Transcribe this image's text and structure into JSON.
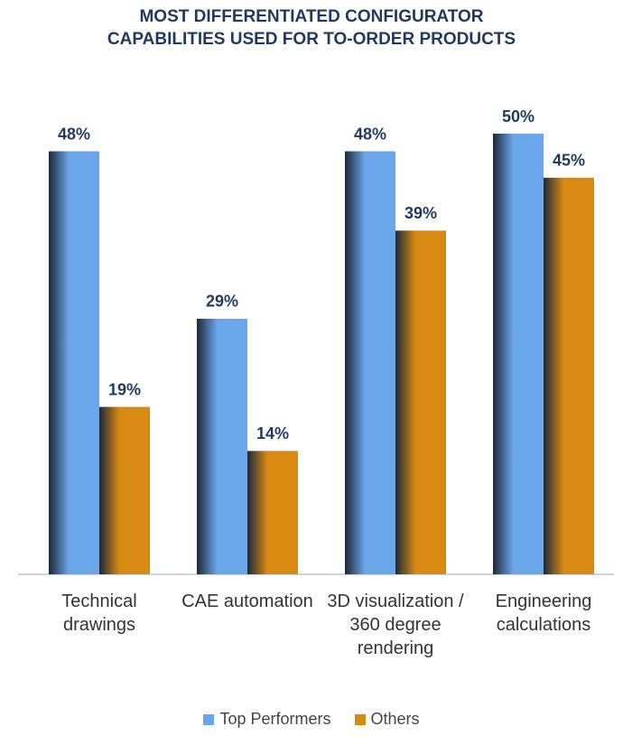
{
  "chart_data": {
    "type": "bar",
    "title": "MOST DIFFERENTIATED CONFIGURATOR CAPABILITIES USED FOR TO-ORDER PRODUCTS",
    "categories": [
      "Technical drawings",
      "CAE automation",
      "3D visualization / 360 degree rendering",
      "Engineering calculations"
    ],
    "series": [
      {
        "name": "Top Performers",
        "color": "#6aa6ea",
        "values": [
          48,
          29,
          48,
          50
        ],
        "value_labels": [
          "48%",
          "29%",
          "48%",
          "50%"
        ]
      },
      {
        "name": "Others",
        "color": "#d98a12",
        "values": [
          19,
          14,
          39,
          45
        ],
        "value_labels": [
          "19%",
          "14%",
          "39%",
          "45%"
        ]
      }
    ],
    "legend": "bottom"
  }
}
